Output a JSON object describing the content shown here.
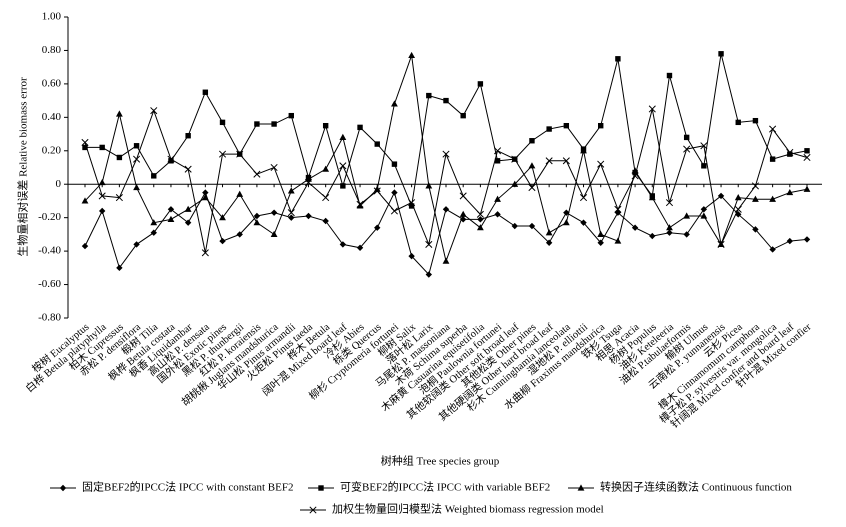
{
  "chart_data": {
    "type": "line",
    "y_label": "生物量相对误差 Relative biomass error",
    "x_label": "树种组 Tree species group",
    "categories": [
      "桉树 Eucalyptus",
      "白桦 Betula platyphylla",
      "柏木 Cupressus",
      "赤松 P. densiflora",
      "椴树 Tilia",
      "枫桦 Betula costata",
      "枫香 Liquidambar",
      "高山松 P. densata",
      "国外松 Exotic pines",
      "黑松 P. thunbergii",
      "红松 P. koraiensis",
      "胡桃楸 Juglans mandshurica",
      "华山松 Pinus armandii",
      "火炬松 Pinus taeda",
      "桦木 Betula",
      "阔叶混 Mixed board leaf",
      "冷杉 Abies",
      "栎类 Quercus",
      "柳杉 Cryptomeria fortunei",
      "柳树 Salix",
      "落叶松 Larix",
      "马尾松 P. massoniana",
      "木荷 Schima superba",
      "木麻黄 Casuarina equisetifolia",
      "泡桐 Paulownia fortunei",
      "其他软阔类 Other soft broad leaf",
      "其他松类 Other pines",
      "其他硬阔类 Other hard broad leaf",
      "杉木 Cunninghamia lanceolata",
      "湿地松 P. elliottii",
      "水曲柳 Fraxinus mandshurica",
      "铁杉 Tsuga",
      "相思 Acacia",
      "杨树 Populus",
      "油杉 Keteleeria",
      "油松 P.tabulaeformis",
      "榆树 Ulmus",
      "云南松 P. yunnanensis",
      "云杉 Picea",
      "樟木 Cinnamomum camphora",
      "樟子松 P. sylvestris var. mongolica",
      "针阔混 Mixed confier and board leaf",
      "针叶混 Mixed confier"
    ],
    "series": [
      {
        "name": "固定BEF2的IPCC法  IPCC with constant BEF2",
        "color": "#000000",
        "marker": "diamond",
        "values": [
          -0.37,
          -0.16,
          -0.5,
          -0.36,
          -0.29,
          -0.15,
          -0.23,
          -0.05,
          -0.34,
          -0.3,
          -0.19,
          -0.17,
          -0.2,
          -0.19,
          -0.22,
          -0.36,
          -0.38,
          -0.26,
          -0.05,
          -0.43,
          -0.54,
          -0.15,
          -0.21,
          -0.21,
          -0.18,
          -0.25,
          -0.25,
          -0.35,
          -0.17,
          -0.23,
          -0.35,
          -0.17,
          -0.26,
          -0.31,
          -0.29,
          -0.3,
          -0.15,
          -0.07,
          -0.18,
          -0.27,
          -0.39,
          -0.34,
          -0.33
        ]
      },
      {
        "name": "可变BEF2的IPCC法  IPCC with variable BEF2",
        "color": "#000000",
        "marker": "square",
        "values": [
          0.22,
          0.22,
          0.16,
          0.23,
          0.05,
          0.14,
          0.29,
          0.55,
          0.37,
          0.18,
          0.36,
          0.36,
          0.41,
          0.04,
          0.35,
          -0.01,
          0.34,
          0.24,
          0.12,
          -0.13,
          0.53,
          0.5,
          0.41,
          0.6,
          0.14,
          0.15,
          0.26,
          0.33,
          0.35,
          0.21,
          0.35,
          0.75,
          0.07,
          -0.07,
          0.65,
          0.28,
          0.11,
          0.78,
          0.37,
          0.38,
          0.15,
          0.18,
          0.2
        ]
      },
      {
        "name": "转换因子连续函数法 Continuous function",
        "color": "#000000",
        "marker": "triangle",
        "values": [
          -0.1,
          0.01,
          0.42,
          -0.02,
          -0.23,
          -0.21,
          -0.15,
          -0.08,
          -0.2,
          -0.06,
          -0.23,
          -0.3,
          -0.04,
          0.03,
          0.09,
          0.28,
          -0.13,
          -0.03,
          0.48,
          0.77,
          -0.01,
          -0.46,
          -0.18,
          -0.26,
          -0.09,
          0,
          0.11,
          -0.29,
          -0.23,
          0.2,
          -0.3,
          -0.34,
          0.08,
          -0.08,
          -0.26,
          -0.19,
          -0.19,
          -0.36,
          -0.08,
          -0.09,
          -0.09,
          -0.05,
          -0.03
        ]
      },
      {
        "name": "加权生物量回归模型法 Weighted biomass regression model",
        "color": "#000000",
        "marker": "x",
        "values": [
          0.25,
          -0.07,
          -0.08,
          0.15,
          0.44,
          0.15,
          0.09,
          -0.41,
          0.18,
          0.18,
          0.06,
          0.1,
          -0.17,
          0.01,
          -0.08,
          0.11,
          -0.12,
          -0.04,
          -0.16,
          -0.11,
          -0.36,
          0.18,
          -0.07,
          -0.18,
          0.2,
          0.15,
          -0.02,
          0.14,
          0.14,
          -0.08,
          0.12,
          -0.15,
          0.05,
          0.45,
          -0.11,
          0.21,
          0.23,
          -0.36,
          -0.15,
          -0.01,
          0.33,
          0.19,
          0.16
        ]
      }
    ],
    "ylim": [
      -0.8,
      1.0
    ],
    "yticks": [
      {
        "value": 1,
        "label": "1.00"
      },
      {
        "value": 0.8,
        "label": "0.80"
      },
      {
        "value": 0.6,
        "label": "0.60"
      },
      {
        "value": 0.4,
        "label": "0.40"
      },
      {
        "value": 0.2,
        "label": "0.20"
      },
      0,
      {
        "value": -0.2,
        "label": "-0.20"
      },
      {
        "value": -0.4,
        "label": "-0.40"
      },
      {
        "value": -0.6,
        "label": "-0.60"
      },
      {
        "value": -0.8,
        "label": "-0.80"
      }
    ],
    "grid": false
  }
}
